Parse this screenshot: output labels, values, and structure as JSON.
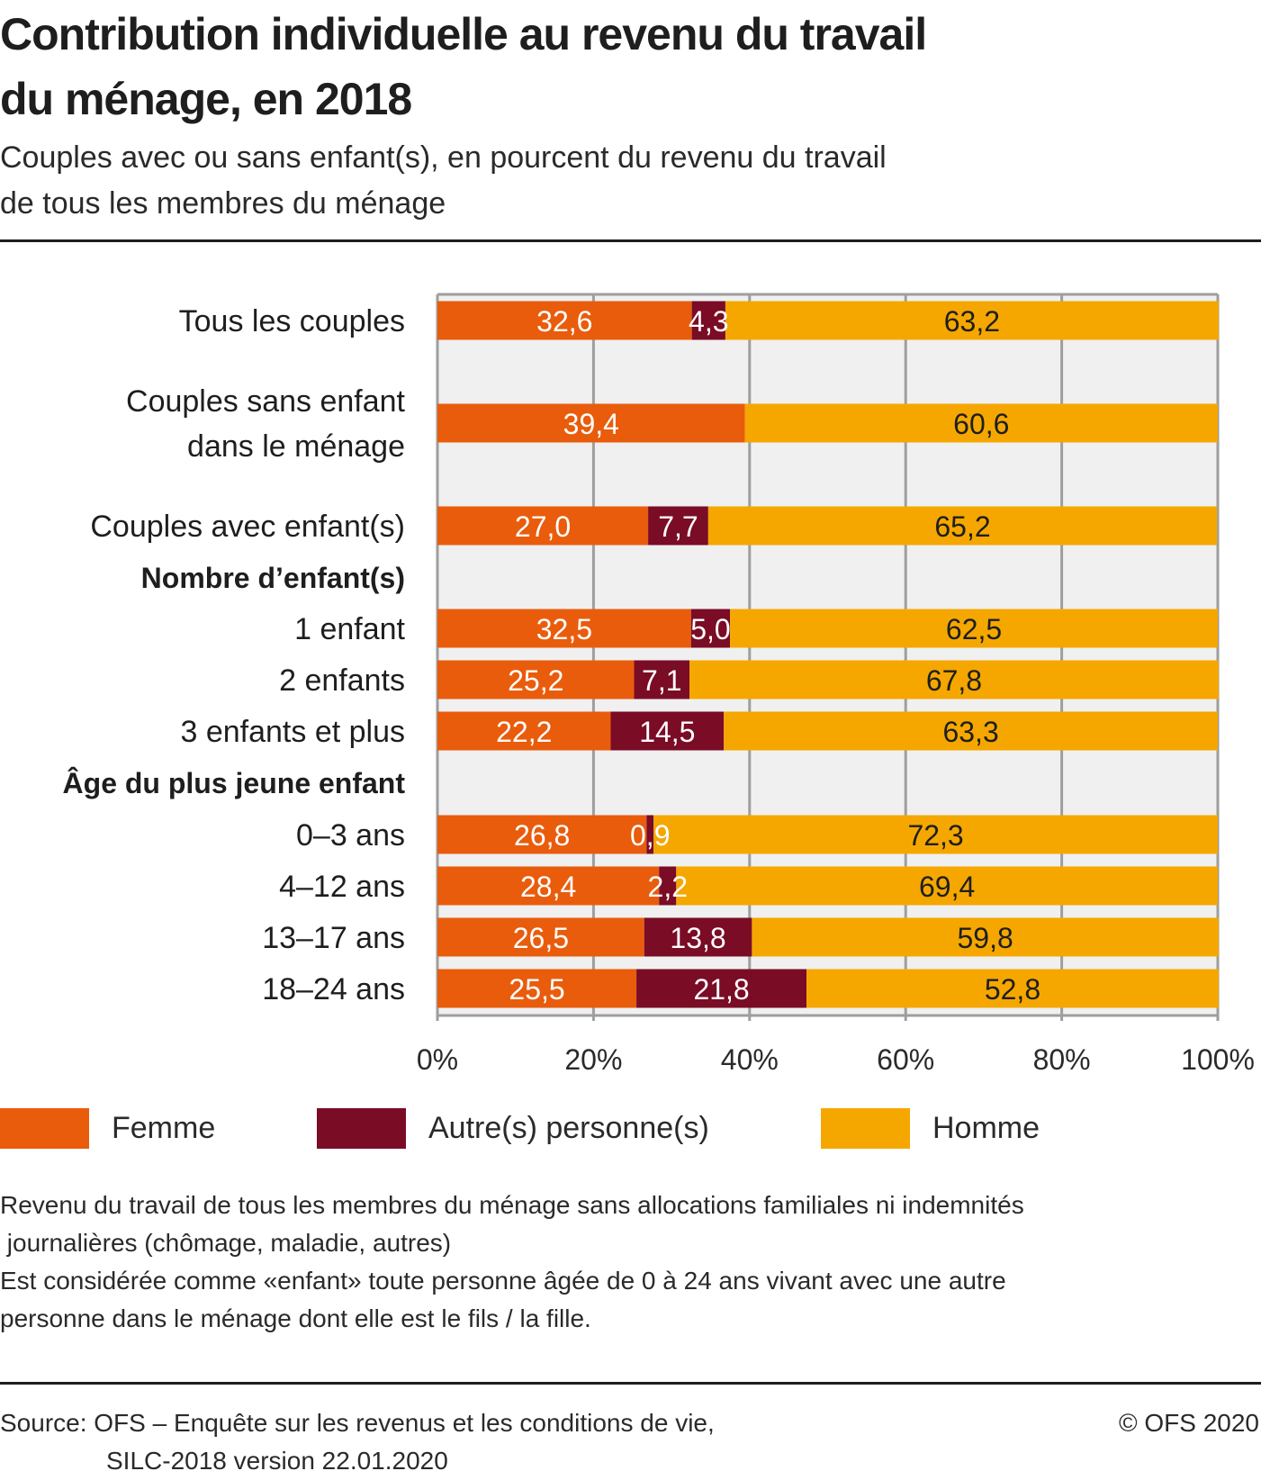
{
  "header": {
    "title_line1": "Contribution individuelle au revenu du travail",
    "title_line2": "du ménage, en 2018",
    "subtitle_line1": "Couples avec ou sans enfant(s), en pourcent du revenu du travail",
    "subtitle_line2": "de tous les membres du ménage"
  },
  "colors": {
    "femme": "#E95C0C",
    "autres": "#7A0C26",
    "homme": "#F5A700",
    "plot_bg": "#F0F0F0",
    "grid": "#9E9E9E"
  },
  "chart_data": {
    "type": "bar",
    "orientation": "horizontal",
    "stacked": true,
    "title": "Contribution individuelle au revenu du travail du ménage, en 2018",
    "subtitle": "Couples avec ou sans enfant(s), en pourcent du revenu du travail de tous les membres du ménage",
    "xlabel": "",
    "ylabel": "",
    "xlim": [
      0,
      100
    ],
    "xticks": [
      "0%",
      "20%",
      "40%",
      "60%",
      "80%",
      "100%"
    ],
    "grid": true,
    "legend_position": "bottom",
    "rows": [
      {
        "label": [
          "Tous les couples"
        ],
        "bold": false,
        "values": [
          32.6,
          4.3,
          63.2
        ],
        "labels": [
          "32,6",
          "4,3",
          "63,2"
        ]
      },
      {
        "label": [
          "Couples sans enfant",
          "dans le ménage"
        ],
        "bold": false,
        "values": [
          39.4,
          0,
          60.6
        ],
        "labels": [
          "39,4",
          "",
          "60,6"
        ]
      },
      {
        "label": [
          "Couples avec enfant(s)"
        ],
        "bold": false,
        "values": [
          27.0,
          7.7,
          65.2
        ],
        "labels": [
          "27,0",
          "7,7",
          "65,2"
        ]
      },
      {
        "label": [
          "Nombre d’enfant(s)"
        ],
        "bold": true,
        "values": null,
        "labels": null
      },
      {
        "label": [
          "1 enfant"
        ],
        "bold": false,
        "values": [
          32.5,
          5.0,
          62.5
        ],
        "labels": [
          "32,5",
          "5,0",
          "62,5"
        ]
      },
      {
        "label": [
          "2 enfants"
        ],
        "bold": false,
        "values": [
          25.2,
          7.1,
          67.8
        ],
        "labels": [
          "25,2",
          "7,1",
          "67,8"
        ]
      },
      {
        "label": [
          "3 enfants et plus"
        ],
        "bold": false,
        "values": [
          22.2,
          14.5,
          63.3
        ],
        "labels": [
          "22,2",
          "14,5",
          "63,3"
        ]
      },
      {
        "label": [
          "Âge du plus jeune enfant"
        ],
        "bold": true,
        "values": null,
        "labels": null
      },
      {
        "label": [
          "0–3 ans"
        ],
        "bold": false,
        "values": [
          26.8,
          0.9,
          72.3
        ],
        "labels": [
          "26,8",
          "0,9",
          "72,3"
        ]
      },
      {
        "label": [
          "4–12 ans"
        ],
        "bold": false,
        "values": [
          28.4,
          2.2,
          69.4
        ],
        "labels": [
          "28,4",
          "2,2",
          "69,4"
        ]
      },
      {
        "label": [
          "13–17 ans"
        ],
        "bold": false,
        "values": [
          26.5,
          13.8,
          59.8
        ],
        "labels": [
          "26,5",
          "13,8",
          "59,8"
        ]
      },
      {
        "label": [
          "18–24 ans"
        ],
        "bold": false,
        "values": [
          25.5,
          21.8,
          52.8
        ],
        "labels": [
          "25,5",
          "21,8",
          "52,8"
        ]
      }
    ],
    "series": [
      {
        "name": "Femme",
        "color": "#E95C0C"
      },
      {
        "name": "Autre(s) personne(s)",
        "color": "#7A0C26"
      },
      {
        "name": "Homme",
        "color": "#F5A700"
      }
    ]
  },
  "legend": {
    "items": [
      {
        "label": "Femme",
        "color": "#E95C0C"
      },
      {
        "label": "Autre(s) personne(s)",
        "color": "#7A0C26"
      },
      {
        "label": "Homme",
        "color": "#F5A700"
      }
    ]
  },
  "notes": {
    "line1": "Revenu du travail de tous les membres du ménage sans allocations familiales ni indemnités",
    "line2": " journalières (chômage, maladie, autres)",
    "line3": "Est considérée comme «enfant» toute personne âgée de 0 à 24 ans vivant avec une autre",
    "line4": "personne dans le ménage dont elle est le fils / la fille."
  },
  "footer": {
    "source_line1": "Source: OFS – Enquête sur les revenus et les conditions de vie,",
    "source_line2": "SILC-2018 version 22.01.2020",
    "copyright": "© OFS 2020"
  }
}
